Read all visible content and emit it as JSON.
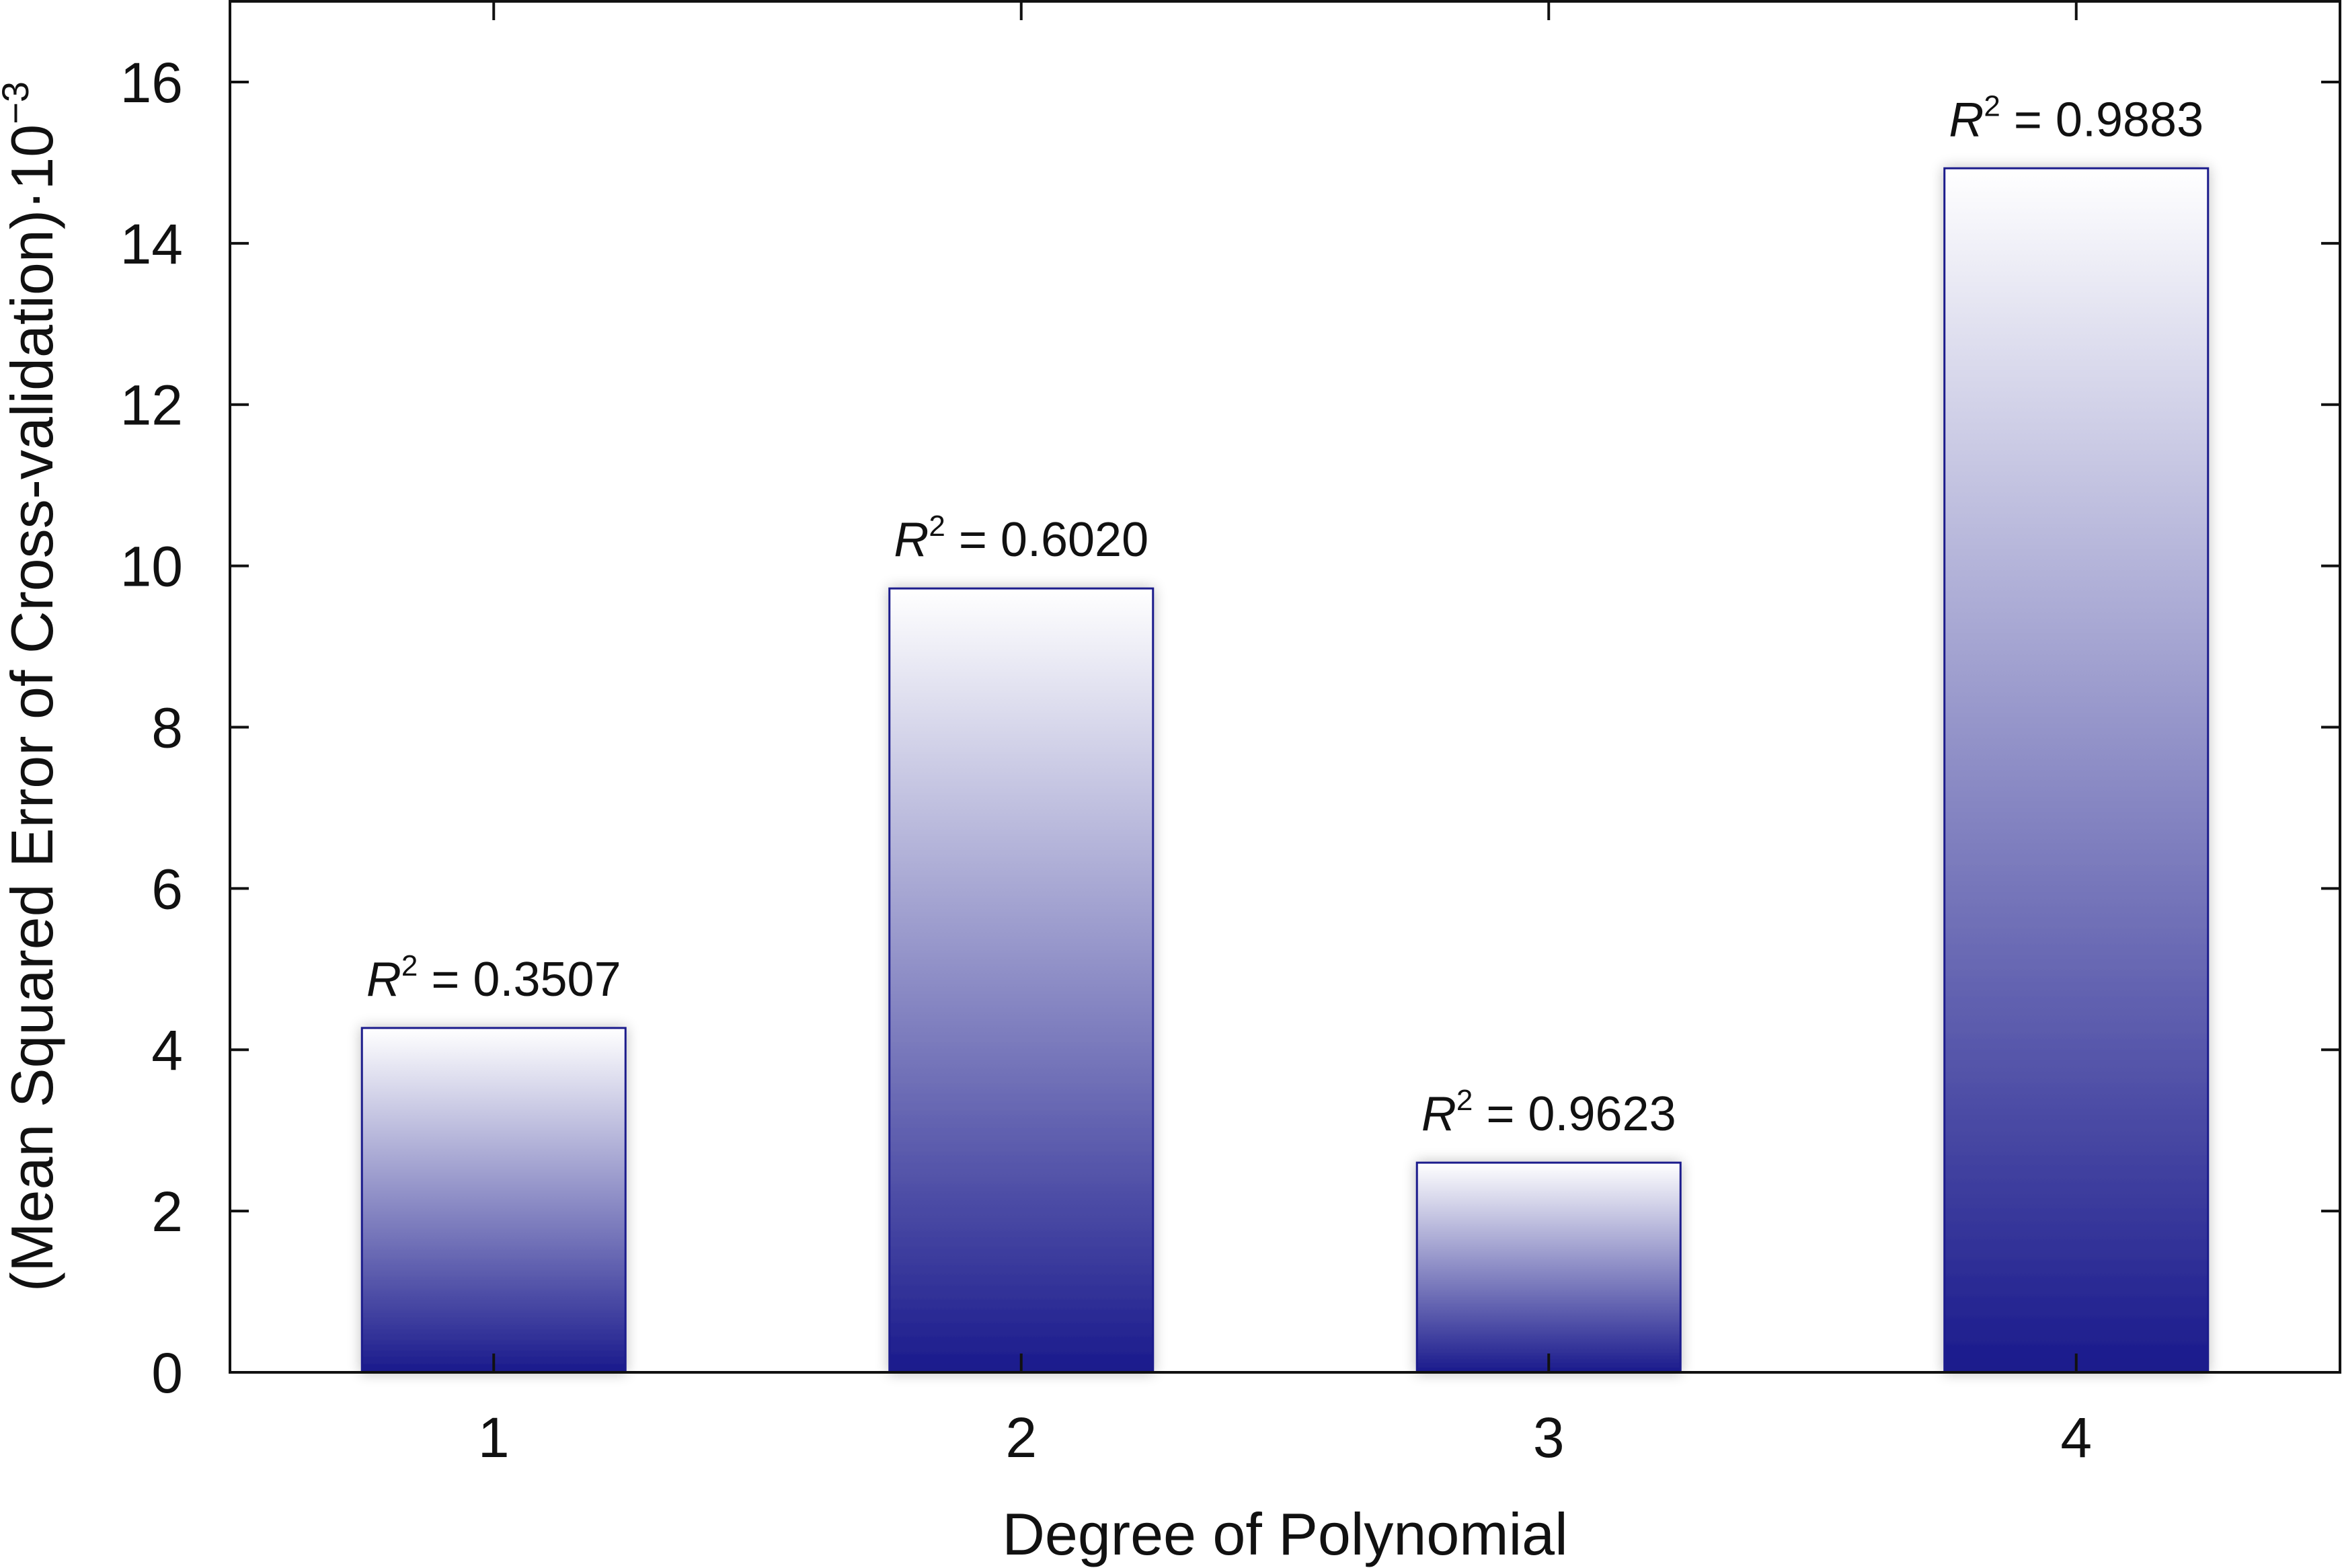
{
  "chart_data": {
    "type": "bar",
    "categories": [
      "1",
      "2",
      "3",
      "4"
    ],
    "values": [
      4.27,
      9.72,
      2.6,
      14.93
    ],
    "bar_labels": [
      {
        "symbol": "R",
        "superscript": "2",
        "text": " = 0.3507"
      },
      {
        "symbol": "R",
        "superscript": "2",
        "text": " = 0.6020"
      },
      {
        "symbol": "R",
        "superscript": "2",
        "text": " = 0.9623"
      },
      {
        "symbol": "R",
        "superscript": "2",
        "text": " = 0.9883"
      }
    ],
    "xlabel": "Degree of Polynomial",
    "ylabel": "(Mean Squared Error of Cross-validation)·10",
    "ylabel_exponent": "−3",
    "ylim": [
      0,
      17
    ],
    "yticks": [
      0,
      2,
      4,
      6,
      8,
      10,
      12,
      14,
      16
    ],
    "grid": false,
    "bar_color_bottom": "#1a1a8c",
    "bar_color_top": "#ffffff",
    "bar_border_color": "#1a1a8c"
  }
}
